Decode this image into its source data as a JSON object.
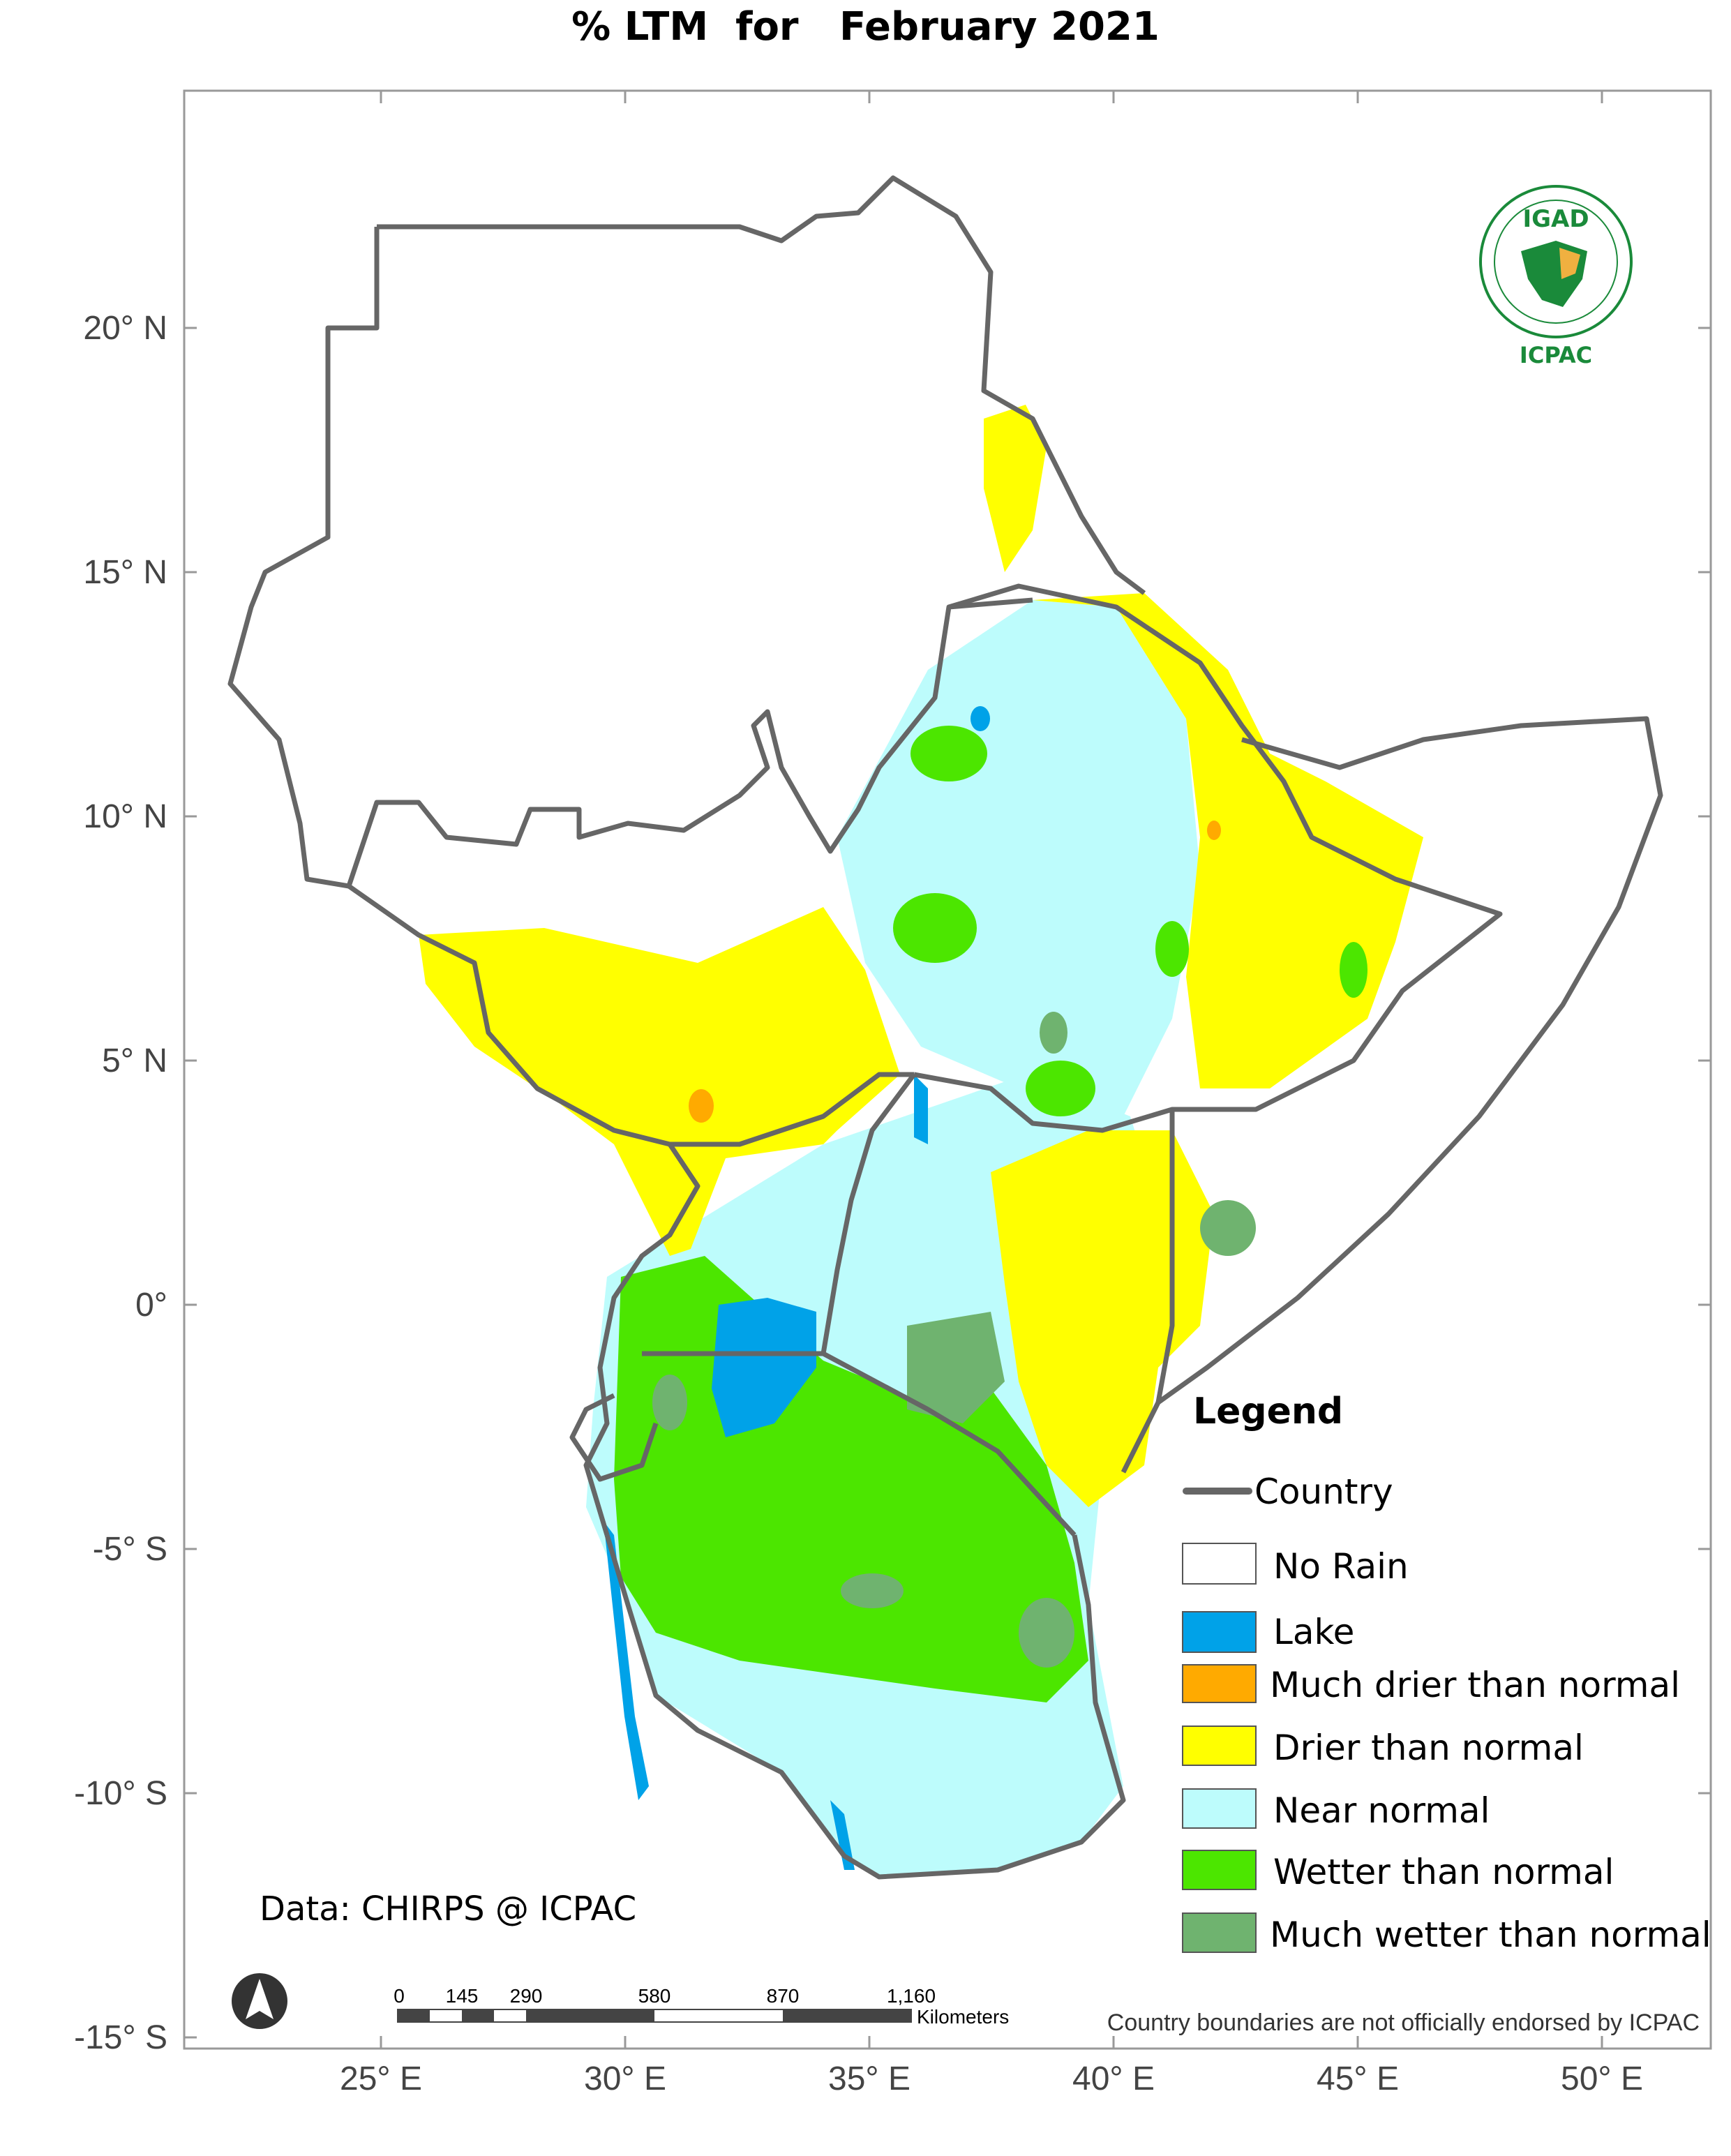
{
  "title": "% LTM  for   February 2021",
  "axes": {
    "x_ticks": [
      "25° E",
      "30° E",
      "35° E",
      "40° E",
      "45° E",
      "50° E"
    ],
    "y_ticks": [
      "20° N",
      "15° N",
      "10° N",
      "5° N",
      "0°",
      "-5° S",
      "-10° S",
      "-15° S"
    ]
  },
  "logo": {
    "top_text": "IGAD",
    "bottom_text": "ICPAC"
  },
  "legend": {
    "title": "Legend",
    "country_label": "Country",
    "items": [
      {
        "label": "No Rain",
        "color": "#ffffff"
      },
      {
        "label": "Lake",
        "color": "#00a2e8"
      },
      {
        "label": "Much drier than normal",
        "color": "#ffaa00"
      },
      {
        "label": "Drier than normal",
        "color": "#ffff00"
      },
      {
        "label": "Near normal",
        "color": "#bdfcfc"
      },
      {
        "label": "Wetter than normal",
        "color": "#4ce600"
      },
      {
        "label": "Much wetter than normal",
        "color": "#6fb36f"
      }
    ]
  },
  "credit": "Data: CHIRPS @ ICPAC",
  "scale_bar": {
    "labels": [
      "0",
      "145",
      "290",
      "580",
      "870",
      "1,160"
    ],
    "unit": "Kilometers"
  },
  "disclaimer": "Country boundaries are not officially endorsed by ICPAC",
  "colors": {
    "border": "#666666",
    "frame": "#999999"
  }
}
